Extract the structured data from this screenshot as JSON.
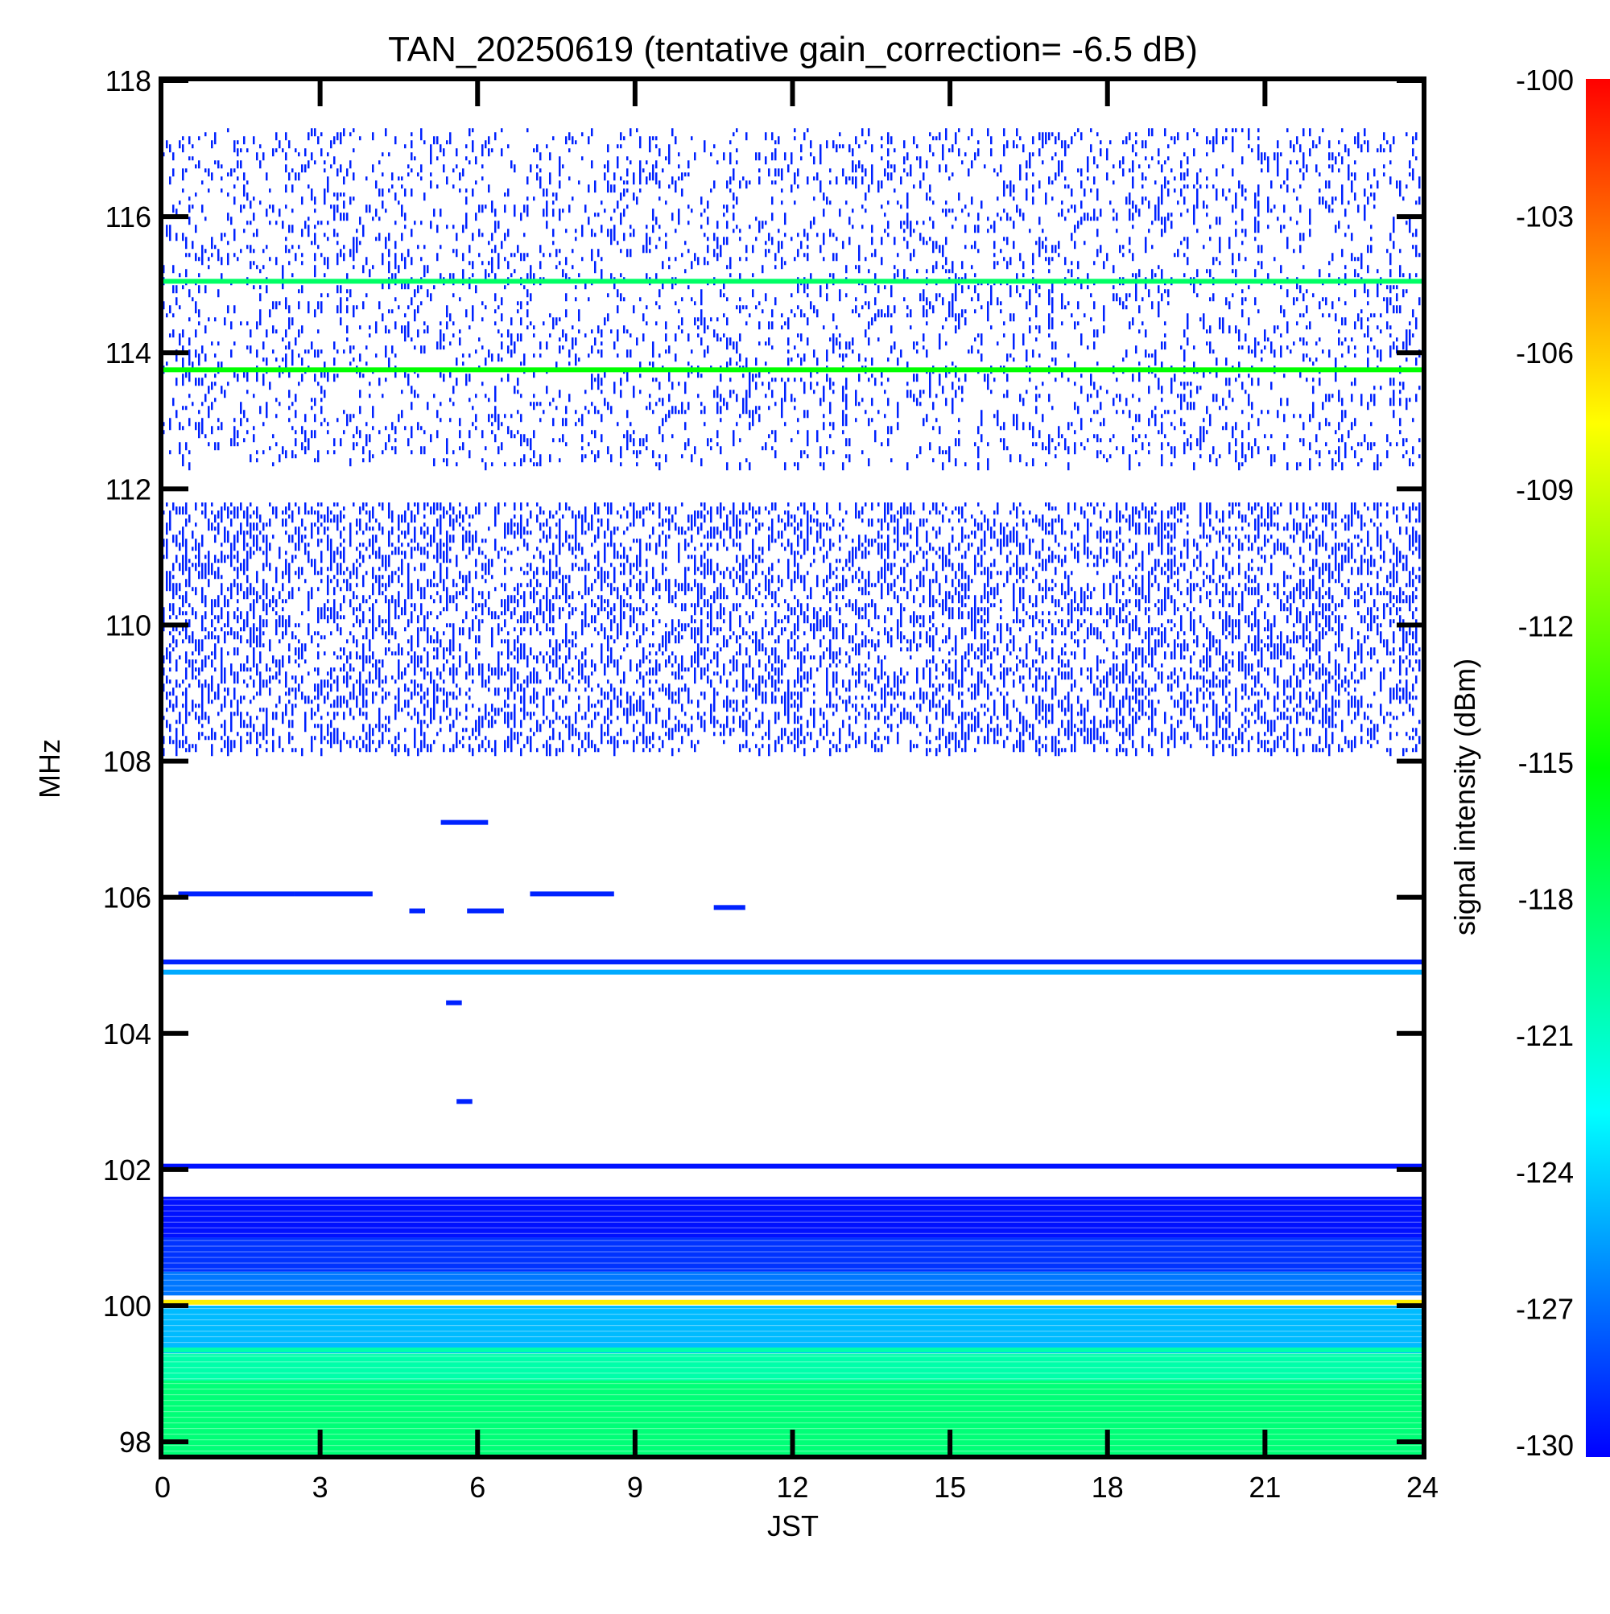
{
  "chart_data": {
    "type": "heatmap",
    "title": "TAN_20250619 (tentative gain_correction= -6.5 dB)",
    "xlabel": "JST",
    "ylabel": "MHz",
    "xlim": [
      0,
      24
    ],
    "ylim": [
      97.8,
      118
    ],
    "x_ticks": [
      "0",
      "3",
      "6",
      "9",
      "12",
      "15",
      "18",
      "21",
      "24"
    ],
    "y_ticks": [
      "98",
      "100",
      "102",
      "104",
      "106",
      "108",
      "110",
      "112",
      "114",
      "116",
      "118"
    ],
    "colorbar": {
      "label": "signal intensity (dBm)",
      "range": [
        -130,
        -100
      ],
      "ticks": [
        "-100",
        "-103",
        "-106",
        "-109",
        "-112",
        "-115",
        "-118",
        "-121",
        "-124",
        "-127",
        "-130"
      ],
      "colormap": "rainbow (blue-cyan-green-yellow-red)"
    },
    "bands": [
      {
        "freq_from": 112.3,
        "freq_to": 117.3,
        "level_dbm": -129,
        "density": 0.22,
        "pattern": "sparse noise"
      },
      {
        "freq_from": 108.1,
        "freq_to": 111.8,
        "level_dbm": -129,
        "density": 0.5,
        "pattern": "dense noise"
      },
      {
        "freq_from": 97.8,
        "freq_to": 98.9,
        "level_dbm": -118.5,
        "density": 1,
        "pattern": "continuous"
      },
      {
        "freq_from": 98.9,
        "freq_to": 99.3,
        "level_dbm": -120,
        "density": 1,
        "pattern": "continuous"
      },
      {
        "freq_from": 99.3,
        "freq_to": 100.0,
        "level_dbm": -124.5,
        "density": 1,
        "pattern": "continuous"
      },
      {
        "freq_from": 100.15,
        "freq_to": 100.5,
        "level_dbm": -126.5,
        "density": 1,
        "pattern": "continuous"
      },
      {
        "freq_from": 100.5,
        "freq_to": 101.0,
        "level_dbm": -128.5,
        "density": 1,
        "pattern": "continuous"
      },
      {
        "freq_from": 101.0,
        "freq_to": 101.6,
        "level_dbm": -129.5,
        "density": 0.9,
        "pattern": "continuous"
      }
    ],
    "lines": [
      {
        "freq": 115.05,
        "level_dbm": -118
      },
      {
        "freq": 113.75,
        "level_dbm": -115
      },
      {
        "freq": 105.05,
        "level_dbm": -129
      },
      {
        "freq": 104.9,
        "level_dbm": -125
      },
      {
        "freq": 102.05,
        "level_dbm": -129.5
      },
      {
        "freq": 100.05,
        "level_dbm": -107
      },
      {
        "freq": 99.35,
        "level_dbm": -120
      }
    ],
    "patches": [
      {
        "t_from": 5.3,
        "t_to": 6.2,
        "freq": 107.1,
        "level_dbm": -129
      },
      {
        "t_from": 4.7,
        "t_to": 5.0,
        "freq": 105.8,
        "level_dbm": -129
      },
      {
        "t_from": 5.8,
        "t_to": 6.5,
        "freq": 105.8,
        "level_dbm": -129
      },
      {
        "t_from": 2.5,
        "t_to": 4.0,
        "freq": 106.05,
        "level_dbm": -129
      },
      {
        "t_from": 0.3,
        "t_to": 2.5,
        "freq": 106.05,
        "level_dbm": -129
      },
      {
        "t_from": 7.0,
        "t_to": 8.6,
        "freq": 106.05,
        "level_dbm": -129
      },
      {
        "t_from": 10.5,
        "t_to": 11.1,
        "freq": 105.85,
        "level_dbm": -129
      },
      {
        "t_from": 5.4,
        "t_to": 5.7,
        "freq": 104.45,
        "level_dbm": -129
      },
      {
        "t_from": 5.6,
        "t_to": 5.9,
        "freq": 103.0,
        "level_dbm": -129
      }
    ]
  }
}
